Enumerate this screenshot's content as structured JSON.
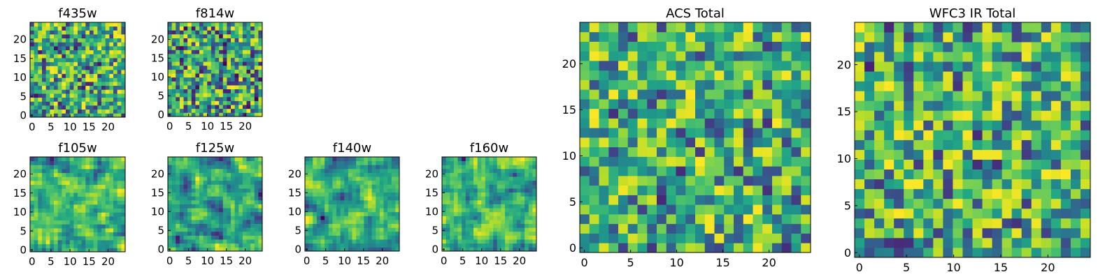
{
  "colors": {
    "colormap": "viridis",
    "axes_frame": "#000000",
    "background": "#ffffff"
  },
  "chart_data": [
    {
      "type": "heatmap",
      "title": "f435w",
      "xlabel": "",
      "ylabel": "",
      "xlim": [
        0,
        24
      ],
      "ylim": [
        0,
        24
      ],
      "grid": 24,
      "xticks": [
        0,
        5,
        10,
        15,
        20
      ],
      "yticks": [
        0,
        5,
        10,
        15,
        20
      ],
      "seed": 11,
      "smooth": 0,
      "bias": 0.05
    },
    {
      "type": "heatmap",
      "title": "f814w",
      "xlabel": "",
      "ylabel": "",
      "xlim": [
        0,
        24
      ],
      "ylim": [
        0,
        24
      ],
      "grid": 24,
      "xticks": [
        0,
        5,
        10,
        15,
        20
      ],
      "yticks": [
        0,
        5,
        10,
        15,
        20
      ],
      "seed": 23,
      "smooth": 0,
      "bias": 0.0
    },
    {
      "type": "heatmap",
      "title": "f105w",
      "xlabel": "",
      "ylabel": "",
      "xlim": [
        0,
        24
      ],
      "ylim": [
        0,
        24
      ],
      "grid": 24,
      "xticks": [
        0,
        5,
        10,
        15,
        20
      ],
      "yticks": [
        0,
        5,
        10,
        15,
        20
      ],
      "seed": 37,
      "smooth": 1,
      "bias": 0.08
    },
    {
      "type": "heatmap",
      "title": "f125w",
      "xlabel": "",
      "ylabel": "",
      "xlim": [
        0,
        24
      ],
      "ylim": [
        0,
        24
      ],
      "grid": 24,
      "xticks": [
        0,
        5,
        10,
        15,
        20
      ],
      "yticks": [
        0,
        5,
        10,
        15,
        20
      ],
      "seed": 41,
      "smooth": 1,
      "bias": 0.05
    },
    {
      "type": "heatmap",
      "title": "f140w",
      "xlabel": "",
      "ylabel": "",
      "xlim": [
        0,
        24
      ],
      "ylim": [
        0,
        24
      ],
      "grid": 24,
      "xticks": [
        0,
        5,
        10,
        15,
        20
      ],
      "yticks": [
        0,
        5,
        10,
        15,
        20
      ],
      "seed": 53,
      "smooth": 1,
      "bias": 0.0
    },
    {
      "type": "heatmap",
      "title": "f160w",
      "xlabel": "",
      "ylabel": "",
      "xlim": [
        0,
        24
      ],
      "ylim": [
        0,
        24
      ],
      "grid": 24,
      "xticks": [
        0,
        5,
        10,
        15,
        20
      ],
      "yticks": [
        0,
        5,
        10,
        15,
        20
      ],
      "seed": 67,
      "smooth": 1,
      "bias": 0.05
    },
    {
      "type": "heatmap",
      "title": "ACS Total",
      "xlabel": "",
      "ylabel": "",
      "xlim": [
        0,
        24
      ],
      "ylim": [
        0,
        24
      ],
      "grid": 24,
      "xticks": [
        0,
        5,
        10,
        15,
        20
      ],
      "yticks": [
        0,
        5,
        10,
        15,
        20
      ],
      "seed": 79,
      "smooth": 0,
      "bias": 0.12
    },
    {
      "type": "heatmap",
      "title": "WFC3 IR Total",
      "xlabel": "",
      "ylabel": "",
      "xlim": [
        0,
        24
      ],
      "ylim": [
        0,
        24
      ],
      "grid": 24,
      "xticks": [
        0,
        5,
        10,
        15,
        20
      ],
      "yticks": [
        0,
        5,
        10,
        15,
        20
      ],
      "seed": 97,
      "smooth": 0,
      "bias": 0.1
    }
  ]
}
